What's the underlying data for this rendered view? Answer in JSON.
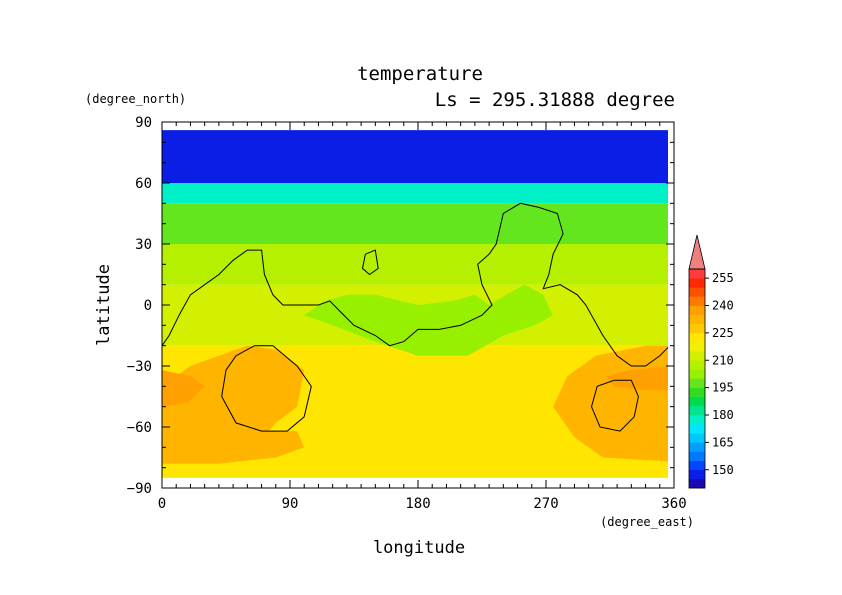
{
  "chart_data": {
    "type": "heatmap",
    "title": "temperature",
    "subtitle": "Ls = 295.31888 degree",
    "xlabel": "longitude",
    "ylabel": "latitude",
    "x_units": "(degree_east)",
    "y_units": "(degree_north)",
    "xlim": [
      0,
      360
    ],
    "ylim": [
      -90,
      90
    ],
    "x_ticks": [
      0,
      90,
      180,
      270,
      360
    ],
    "y_ticks": [
      90,
      60,
      30,
      0,
      -30,
      -60,
      -90
    ],
    "x_tick_labels": [
      "0",
      "90",
      "180",
      "270",
      "360"
    ],
    "y_tick_labels": [
      "90",
      "60",
      "30",
      "0",
      "−30",
      "−60",
      "−90"
    ],
    "colorbar": {
      "labels": [
        "255",
        "240",
        "225",
        "210",
        "195",
        "180",
        "165",
        "150"
      ],
      "label_values": [
        255,
        240,
        225,
        210,
        195,
        180,
        165,
        150
      ],
      "levels": [
        140,
        145,
        150,
        155,
        160,
        165,
        170,
        175,
        180,
        185,
        190,
        195,
        200,
        205,
        210,
        215,
        220,
        225,
        230,
        235,
        240,
        245,
        250,
        255,
        260
      ],
      "colors": [
        "#1a0ab4",
        "#0a1ee6",
        "#0046ff",
        "#0078ff",
        "#00a0ff",
        "#00c8ff",
        "#00e6ff",
        "#00f0c8",
        "#00e68c",
        "#00dc50",
        "#32dc1e",
        "#64e61e",
        "#96f000",
        "#b4f000",
        "#d2f000",
        "#f0f000",
        "#ffe600",
        "#ffc800",
        "#ffb400",
        "#ffa000",
        "#ff7800",
        "#ff5000",
        "#ff2800",
        "#ff3c3c"
      ],
      "overflow_color": "#f08080"
    },
    "bands": [
      {
        "lat_min": 60,
        "lat_max": 86,
        "value": 148
      },
      {
        "lat_min": 50,
        "lat_max": 60,
        "value": 175
      },
      {
        "lat_min": 30,
        "lat_max": 50,
        "value": 196
      },
      {
        "lat_min": 10,
        "lat_max": 30,
        "value": 207
      },
      {
        "lat_min": -20,
        "lat_max": 10,
        "value": 214
      },
      {
        "lat_min": -85,
        "lat_max": -20,
        "value": 224
      }
    ],
    "features": [
      {
        "kind": "contour",
        "name": "coastline",
        "points": [
          [
            0,
            -20
          ],
          [
            5,
            -15
          ],
          [
            12,
            -5
          ],
          [
            20,
            5
          ],
          [
            30,
            10
          ],
          [
            40,
            15
          ],
          [
            50,
            22
          ],
          [
            60,
            27
          ],
          [
            70,
            27
          ],
          [
            72,
            15
          ],
          [
            78,
            5
          ],
          [
            85,
            0
          ],
          [
            110,
            0
          ],
          [
            118,
            2
          ],
          [
            125,
            -3
          ],
          [
            135,
            -10
          ],
          [
            150,
            -15
          ],
          [
            160,
            -20
          ],
          [
            170,
            -18
          ],
          [
            180,
            -12
          ],
          [
            195,
            -12
          ],
          [
            210,
            -10
          ],
          [
            225,
            -5
          ],
          [
            232,
            0
          ],
          [
            225,
            10
          ],
          [
            222,
            20
          ],
          [
            230,
            25
          ],
          [
            235,
            30
          ],
          [
            240,
            45
          ],
          [
            252,
            50
          ],
          [
            265,
            48
          ],
          [
            278,
            45
          ],
          [
            282,
            35
          ],
          [
            275,
            25
          ],
          [
            272,
            15
          ],
          [
            268,
            8
          ],
          [
            280,
            10
          ],
          [
            292,
            5
          ],
          [
            298,
            0
          ],
          [
            310,
            -15
          ],
          [
            320,
            -25
          ],
          [
            330,
            -30
          ],
          [
            340,
            -30
          ],
          [
            350,
            -25
          ],
          [
            357,
            -20
          ]
        ]
      },
      {
        "kind": "contour",
        "name": "southwest-circle",
        "points": [
          [
            52,
            -25
          ],
          [
            65,
            -20
          ],
          [
            78,
            -20
          ],
          [
            95,
            -30
          ],
          [
            105,
            -40
          ],
          [
            100,
            -55
          ],
          [
            88,
            -62
          ],
          [
            70,
            -62
          ],
          [
            52,
            -58
          ],
          [
            42,
            -45
          ],
          [
            45,
            -32
          ],
          [
            52,
            -25
          ]
        ]
      },
      {
        "kind": "contour",
        "name": "southeast-circle",
        "points": [
          [
            318,
            -37
          ],
          [
            330,
            -37
          ],
          [
            335,
            -45
          ],
          [
            332,
            -55
          ],
          [
            322,
            -62
          ],
          [
            308,
            -60
          ],
          [
            302,
            -50
          ],
          [
            306,
            -40
          ],
          [
            318,
            -37
          ]
        ]
      },
      {
        "kind": "contour",
        "name": "small-island",
        "points": [
          [
            143,
            25
          ],
          [
            150,
            27
          ],
          [
            152,
            18
          ],
          [
            146,
            15
          ],
          [
            141,
            18
          ],
          [
            143,
            25
          ]
        ]
      },
      {
        "kind": "region",
        "value": 231,
        "points": [
          [
            0,
            -40
          ],
          [
            20,
            -30
          ],
          [
            40,
            -25
          ],
          [
            60,
            -20
          ],
          [
            80,
            -22
          ],
          [
            100,
            -32
          ],
          [
            95,
            -50
          ],
          [
            80,
            -58
          ],
          [
            75,
            -62
          ],
          [
            95,
            -62
          ],
          [
            100,
            -70
          ],
          [
            80,
            -75
          ],
          [
            40,
            -78
          ],
          [
            0,
            -78
          ]
        ]
      },
      {
        "kind": "region",
        "value": 231,
        "points": [
          [
            360,
            -20
          ],
          [
            340,
            -20
          ],
          [
            305,
            -25
          ],
          [
            285,
            -35
          ],
          [
            275,
            -50
          ],
          [
            290,
            -65
          ],
          [
            310,
            -75
          ],
          [
            360,
            -77
          ]
        ]
      },
      {
        "kind": "region",
        "value": 238,
        "points": [
          [
            0,
            -32
          ],
          [
            20,
            -35
          ],
          [
            30,
            -40
          ],
          [
            18,
            -48
          ],
          [
            0,
            -50
          ]
        ]
      },
      {
        "kind": "region",
        "value": 238,
        "points": [
          [
            360,
            -30
          ],
          [
            330,
            -32
          ],
          [
            312,
            -35
          ],
          [
            318,
            -40
          ],
          [
            340,
            -42
          ],
          [
            360,
            -42
          ]
        ]
      },
      {
        "kind": "region",
        "value": 203,
        "points": [
          [
            100,
            -5
          ],
          [
            120,
            -10
          ],
          [
            150,
            -18
          ],
          [
            180,
            -25
          ],
          [
            215,
            -25
          ],
          [
            240,
            -15
          ],
          [
            262,
            -10
          ],
          [
            275,
            -5
          ],
          [
            268,
            5
          ],
          [
            255,
            10
          ],
          [
            242,
            5
          ],
          [
            230,
            0
          ],
          [
            220,
            5
          ],
          [
            205,
            2
          ],
          [
            180,
            0
          ],
          [
            150,
            5
          ],
          [
            130,
            5
          ],
          [
            115,
            2
          ]
        ]
      }
    ]
  }
}
